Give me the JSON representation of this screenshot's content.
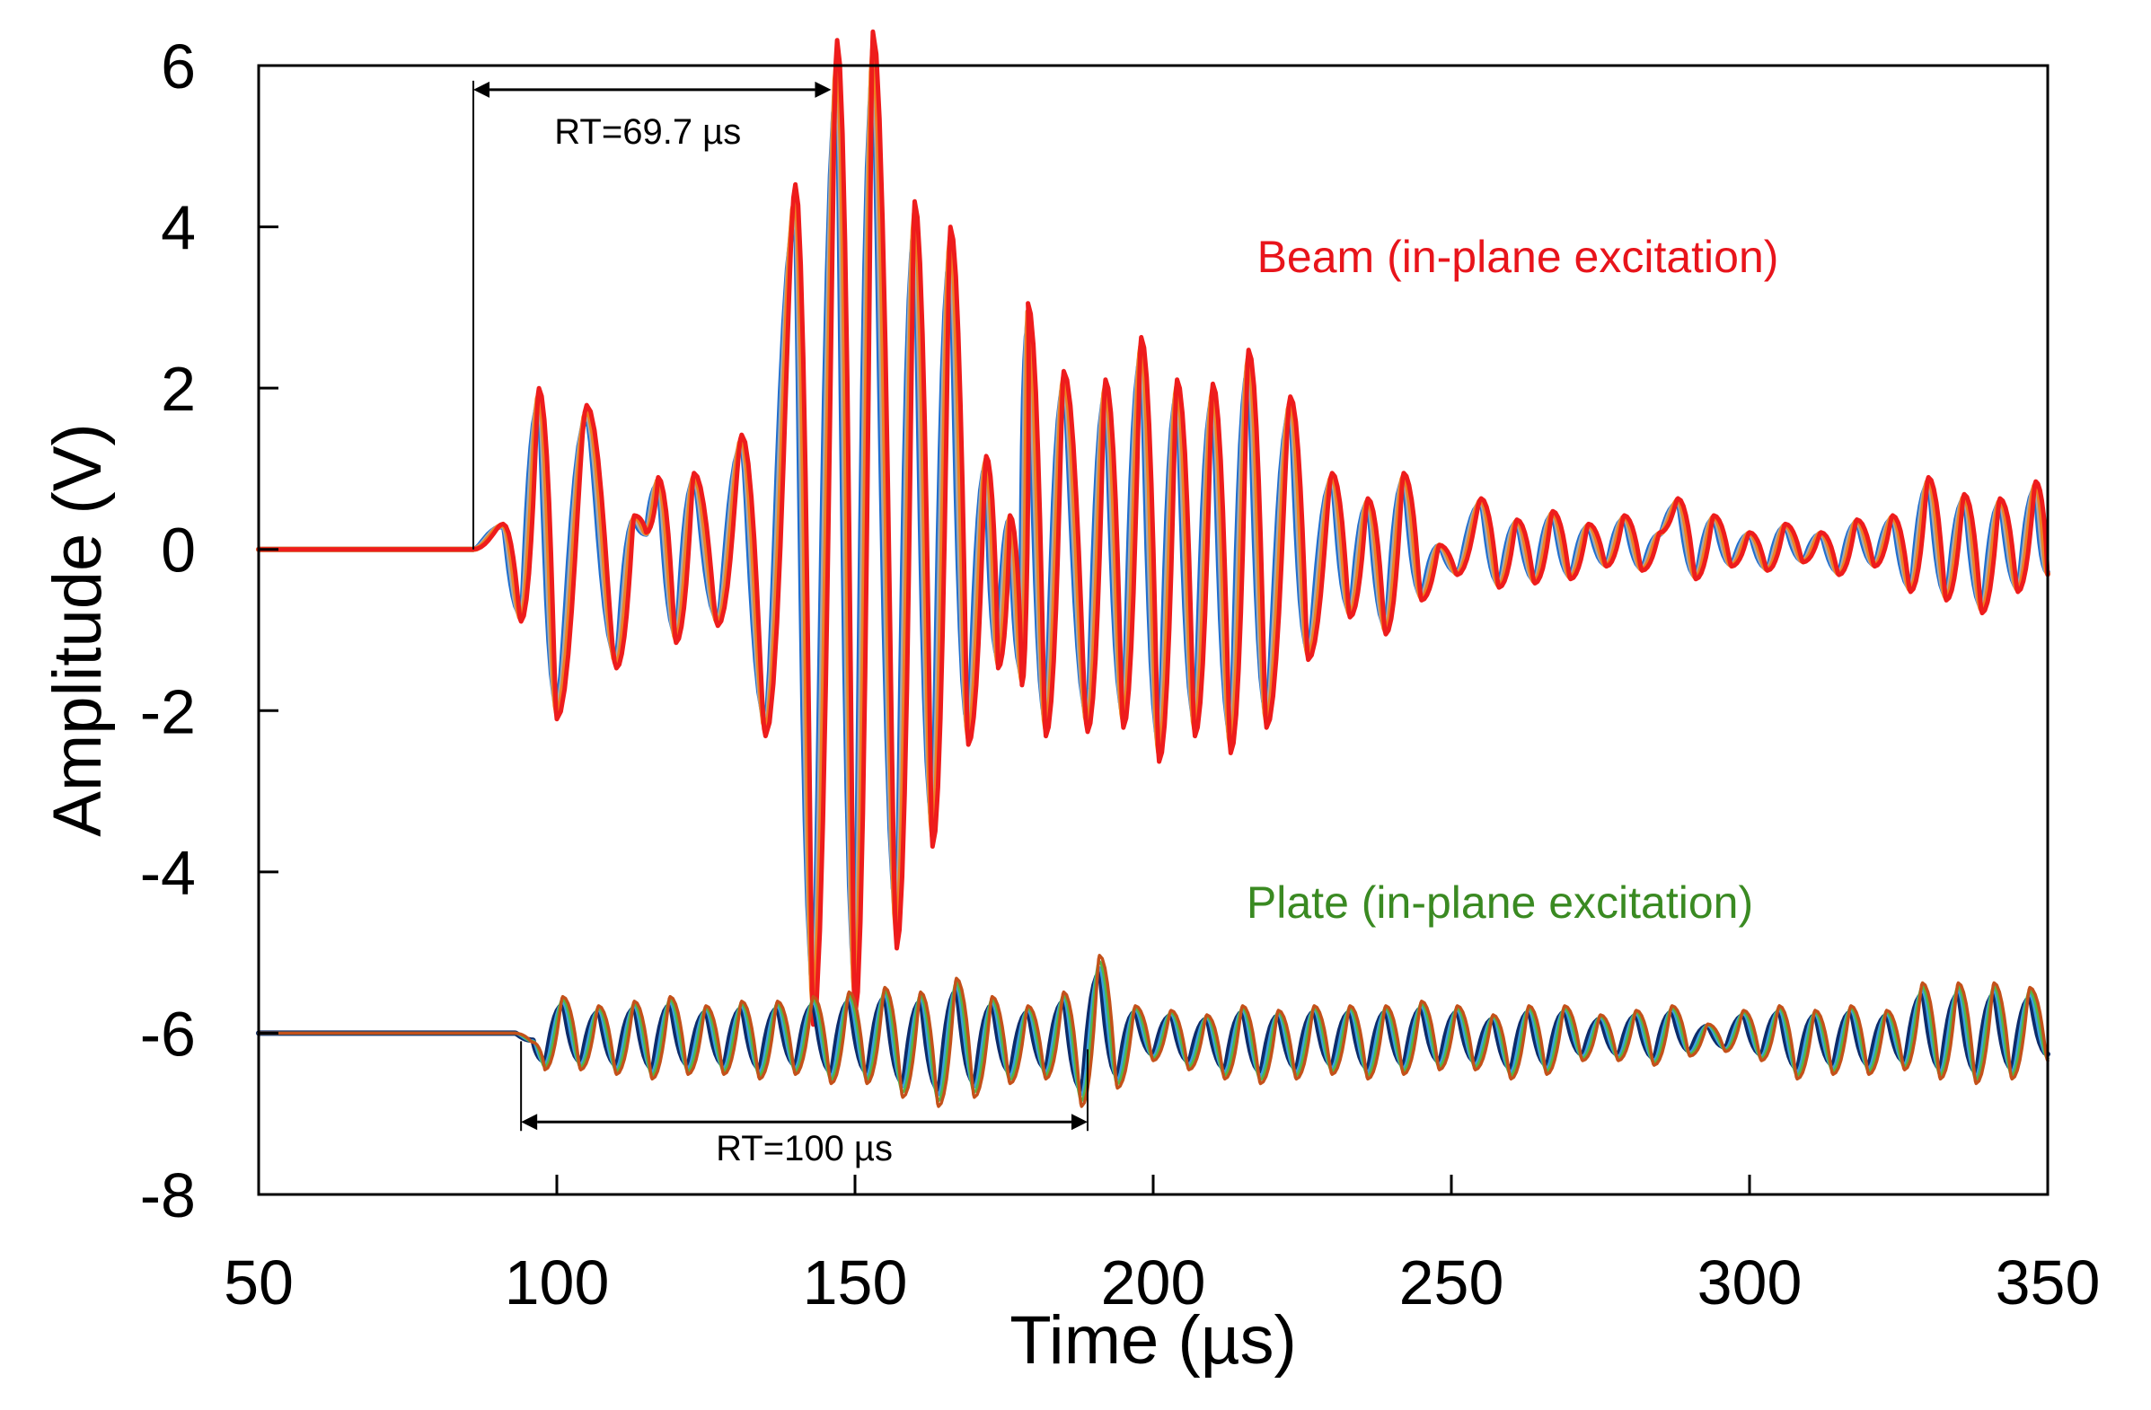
{
  "chart_data": {
    "type": "line",
    "xlabel": "Time (µs)",
    "ylabel": "Amplitude (V)",
    "xlim": [
      50,
      350
    ],
    "ylim": [
      -8,
      6
    ],
    "xticks": [
      "50",
      "100",
      "150",
      "200",
      "250",
      "300",
      "350"
    ],
    "yticks": [
      "6",
      "4",
      "2",
      "0",
      "-2",
      "-4",
      "-6",
      "-8"
    ],
    "grid": false,
    "annotations": [
      {
        "text": "RT=69.7 µs",
        "x_start": 86,
        "x_end": 146,
        "y": 5.7
      },
      {
        "text": "RT=100 µs",
        "x_start": 94,
        "x_end": 189,
        "y": -7.1
      }
    ],
    "groups": [
      {
        "label": "Beam (in-plane excitation)",
        "label_color": "#e8141b",
        "baseline": 0,
        "onset": 86,
        "colors": [
          "#1f6fd1",
          "#a9a9a9",
          "#f08020",
          "#ee1c1c"
        ],
        "peaks": [
          {
            "x": 91,
            "y": 0.3
          },
          {
            "x": 94,
            "y": -0.85
          },
          {
            "x": 97,
            "y": 1.9
          },
          {
            "x": 100,
            "y": -2.0
          },
          {
            "x": 105,
            "y": 1.7
          },
          {
            "x": 110,
            "y": -1.4
          },
          {
            "x": 113,
            "y": 0.4
          },
          {
            "x": 115,
            "y": 0.2
          },
          {
            "x": 117,
            "y": 0.85
          },
          {
            "x": 120,
            "y": -1.1
          },
          {
            "x": 123,
            "y": 0.9
          },
          {
            "x": 127,
            "y": -0.9
          },
          {
            "x": 131,
            "y": 1.35
          },
          {
            "x": 135,
            "y": -2.2
          },
          {
            "x": 140,
            "y": 4.3
          },
          {
            "x": 143,
            "y": -5.6
          },
          {
            "x": 147,
            "y": 6.0
          },
          {
            "x": 150,
            "y": -5.5
          },
          {
            "x": 153,
            "y": 6.1
          },
          {
            "x": 157,
            "y": -4.7
          },
          {
            "x": 160,
            "y": 4.1
          },
          {
            "x": 163,
            "y": -3.5
          },
          {
            "x": 166,
            "y": 3.8
          },
          {
            "x": 169,
            "y": -2.3
          },
          {
            "x": 172,
            "y": 1.1
          },
          {
            "x": 174,
            "y": -1.4
          },
          {
            "x": 176,
            "y": 0.4
          },
          {
            "x": 178,
            "y": -1.6
          },
          {
            "x": 179,
            "y": 2.9
          },
          {
            "x": 182,
            "y": -2.2
          },
          {
            "x": 185,
            "y": 2.1
          },
          {
            "x": 189,
            "y": -2.15
          },
          {
            "x": 192,
            "y": 2.0
          },
          {
            "x": 195,
            "y": -2.1
          },
          {
            "x": 198,
            "y": 2.5
          },
          {
            "x": 201,
            "y": -2.5
          },
          {
            "x": 204,
            "y": 2.0
          },
          {
            "x": 207,
            "y": -2.2
          },
          {
            "x": 210,
            "y": 1.95
          },
          {
            "x": 213,
            "y": -2.4
          },
          {
            "x": 216,
            "y": 2.35
          },
          {
            "x": 219,
            "y": -2.1
          },
          {
            "x": 223,
            "y": 1.8
          },
          {
            "x": 226,
            "y": -1.3
          },
          {
            "x": 230,
            "y": 0.9
          },
          {
            "x": 233,
            "y": -0.8
          },
          {
            "x": 236,
            "y": 0.6
          },
          {
            "x": 239,
            "y": -1.0
          },
          {
            "x": 242,
            "y": 0.9
          },
          {
            "x": 245,
            "y": -0.6
          },
          {
            "x": 248,
            "y": 0.05
          },
          {
            "x": 251,
            "y": -0.3
          },
          {
            "x": 255,
            "y": 0.6
          },
          {
            "x": 258,
            "y": -0.45
          },
          {
            "x": 261,
            "y": 0.35
          },
          {
            "x": 264,
            "y": -0.4
          },
          {
            "x": 267,
            "y": 0.45
          },
          {
            "x": 270,
            "y": -0.35
          },
          {
            "x": 273,
            "y": 0.3
          },
          {
            "x": 276,
            "y": -0.2
          },
          {
            "x": 279,
            "y": 0.4
          },
          {
            "x": 282,
            "y": -0.25
          },
          {
            "x": 285,
            "y": 0.2
          },
          {
            "x": 288,
            "y": 0.6
          },
          {
            "x": 291,
            "y": -0.35
          },
          {
            "x": 294,
            "y": 0.4
          },
          {
            "x": 297,
            "y": -0.2
          },
          {
            "x": 300,
            "y": 0.2
          },
          {
            "x": 303,
            "y": -0.25
          },
          {
            "x": 306,
            "y": 0.3
          },
          {
            "x": 309,
            "y": -0.15
          },
          {
            "x": 312,
            "y": 0.2
          },
          {
            "x": 315,
            "y": -0.3
          },
          {
            "x": 318,
            "y": 0.35
          },
          {
            "x": 321,
            "y": -0.2
          },
          {
            "x": 324,
            "y": 0.4
          },
          {
            "x": 327,
            "y": -0.5
          },
          {
            "x": 330,
            "y": 0.85
          },
          {
            "x": 333,
            "y": -0.6
          },
          {
            "x": 336,
            "y": 0.65
          },
          {
            "x": 339,
            "y": -0.75
          },
          {
            "x": 342,
            "y": 0.6
          },
          {
            "x": 345,
            "y": -0.5
          },
          {
            "x": 348,
            "y": 0.8
          },
          {
            "x": 350,
            "y": -0.3
          }
        ]
      },
      {
        "label": "Plate (in-plane excitation)",
        "label_color": "#3a8a22",
        "baseline": -6,
        "onset": 93,
        "colors": [
          "#0c2b6b",
          "#3aa0e0",
          "#52b848",
          "#c4511a"
        ],
        "peaks": [
          {
            "x": 96,
            "y": -6.1
          },
          {
            "x": 98,
            "y": -6.4
          },
          {
            "x": 101,
            "y": -5.6
          },
          {
            "x": 104,
            "y": -6.4
          },
          {
            "x": 107,
            "y": -5.7
          },
          {
            "x": 110,
            "y": -6.45
          },
          {
            "x": 113,
            "y": -5.65
          },
          {
            "x": 116,
            "y": -6.5
          },
          {
            "x": 119,
            "y": -5.6
          },
          {
            "x": 122,
            "y": -6.45
          },
          {
            "x": 125,
            "y": -5.7
          },
          {
            "x": 128,
            "y": -6.45
          },
          {
            "x": 131,
            "y": -5.65
          },
          {
            "x": 134,
            "y": -6.5
          },
          {
            "x": 137,
            "y": -5.65
          },
          {
            "x": 140,
            "y": -6.45
          },
          {
            "x": 143,
            "y": -5.6
          },
          {
            "x": 146,
            "y": -6.55
          },
          {
            "x": 149,
            "y": -5.55
          },
          {
            "x": 152,
            "y": -6.55
          },
          {
            "x": 155,
            "y": -5.5
          },
          {
            "x": 158,
            "y": -6.7
          },
          {
            "x": 161,
            "y": -5.55
          },
          {
            "x": 164,
            "y": -6.8
          },
          {
            "x": 167,
            "y": -5.4
          },
          {
            "x": 170,
            "y": -6.7
          },
          {
            "x": 173,
            "y": -5.6
          },
          {
            "x": 176,
            "y": -6.55
          },
          {
            "x": 179,
            "y": -5.7
          },
          {
            "x": 182,
            "y": -6.5
          },
          {
            "x": 185,
            "y": -5.55
          },
          {
            "x": 188,
            "y": -6.8
          },
          {
            "x": 191,
            "y": -5.15
          },
          {
            "x": 194,
            "y": -6.6
          },
          {
            "x": 197,
            "y": -5.7
          },
          {
            "x": 200,
            "y": -6.3
          },
          {
            "x": 203,
            "y": -5.75
          },
          {
            "x": 206,
            "y": -6.4
          },
          {
            "x": 209,
            "y": -5.8
          },
          {
            "x": 212,
            "y": -6.5
          },
          {
            "x": 215,
            "y": -5.7
          },
          {
            "x": 218,
            "y": -6.55
          },
          {
            "x": 221,
            "y": -5.75
          },
          {
            "x": 224,
            "y": -6.5
          },
          {
            "x": 227,
            "y": -5.7
          },
          {
            "x": 230,
            "y": -6.45
          },
          {
            "x": 233,
            "y": -5.7
          },
          {
            "x": 236,
            "y": -6.5
          },
          {
            "x": 239,
            "y": -5.7
          },
          {
            "x": 242,
            "y": -6.45
          },
          {
            "x": 245,
            "y": -5.65
          },
          {
            "x": 248,
            "y": -6.4
          },
          {
            "x": 251,
            "y": -5.7
          },
          {
            "x": 254,
            "y": -6.4
          },
          {
            "x": 257,
            "y": -5.8
          },
          {
            "x": 260,
            "y": -6.5
          },
          {
            "x": 263,
            "y": -5.7
          },
          {
            "x": 266,
            "y": -6.45
          },
          {
            "x": 269,
            "y": -5.7
          },
          {
            "x": 272,
            "y": -6.3
          },
          {
            "x": 275,
            "y": -5.8
          },
          {
            "x": 278,
            "y": -6.3
          },
          {
            "x": 281,
            "y": -5.75
          },
          {
            "x": 284,
            "y": -6.35
          },
          {
            "x": 287,
            "y": -5.7
          },
          {
            "x": 290,
            "y": -6.25
          },
          {
            "x": 293,
            "y": -5.9
          },
          {
            "x": 296,
            "y": -6.2
          },
          {
            "x": 299,
            "y": -5.75
          },
          {
            "x": 302,
            "y": -6.3
          },
          {
            "x": 305,
            "y": -5.7
          },
          {
            "x": 308,
            "y": -6.5
          },
          {
            "x": 311,
            "y": -5.75
          },
          {
            "x": 314,
            "y": -6.45
          },
          {
            "x": 317,
            "y": -5.7
          },
          {
            "x": 320,
            "y": -6.45
          },
          {
            "x": 323,
            "y": -5.75
          },
          {
            "x": 326,
            "y": -6.4
          },
          {
            "x": 329,
            "y": -5.45
          },
          {
            "x": 332,
            "y": -6.5
          },
          {
            "x": 335,
            "y": -5.45
          },
          {
            "x": 338,
            "y": -6.55
          },
          {
            "x": 341,
            "y": -5.45
          },
          {
            "x": 344,
            "y": -6.5
          },
          {
            "x": 347,
            "y": -5.5
          },
          {
            "x": 350,
            "y": -6.3
          }
        ]
      }
    ]
  }
}
